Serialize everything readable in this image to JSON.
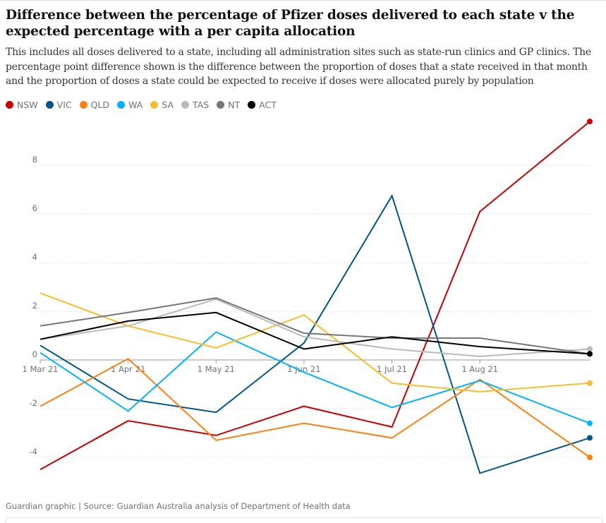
{
  "header": {
    "title": "Difference between the percentage of Pfizer doses delivered to each state v the expected percentage with a per capita allocation",
    "subtitle": "This includes all doses delivered to a state, including all administration sites such as state-run clinics and GP clinics. The percentage point difference shown is the difference between the proportion of doses that a state received in that month and the proportion of doses a state could be expected to receive if doses were allocated purely by population"
  },
  "footer": {
    "source": "Guardian graphic | Source: Guardian Australia analysis of Department of Health data"
  },
  "chart_data": {
    "type": "line",
    "title": "Difference between the percentage of Pfizer doses delivered to each state v the expected percentage with a per capita allocation",
    "xlabel": "",
    "ylabel": "",
    "x_range": [
      0,
      6.25
    ],
    "ylim": [
      -4.9,
      9.6
    ],
    "x_ticks": [
      {
        "x": 0,
        "label": "1 Mar 21"
      },
      {
        "x": 1,
        "label": "1 Apr 21"
      },
      {
        "x": 2,
        "label": "1 May 21"
      },
      {
        "x": 3,
        "label": "1 Jun 21"
      },
      {
        "x": 4,
        "label": "1 Jul 21"
      },
      {
        "x": 5,
        "label": "1 Aug 21"
      }
    ],
    "y_ticks": [
      -4,
      -2,
      0,
      2,
      4,
      6,
      8
    ],
    "x": [
      0,
      1,
      2,
      3,
      4,
      5,
      6.25
    ],
    "series": [
      {
        "name": "NSW",
        "color": "#c70000",
        "values": [
          -4.5,
          -2.5,
          -3.1,
          -1.9,
          -2.75,
          6.1,
          9.8
        ]
      },
      {
        "name": "VIC",
        "color": "#005689",
        "values": [
          0.6,
          -1.6,
          -2.15,
          0.7,
          6.75,
          -4.65,
          -3.2
        ]
      },
      {
        "name": "QLD",
        "color": "#ff7f0f",
        "values": [
          -1.9,
          0.05,
          -3.3,
          -2.6,
          -3.2,
          -0.8,
          -4.0
        ]
      },
      {
        "name": "WA",
        "color": "#00b2ff",
        "values": [
          0.3,
          -2.1,
          1.15,
          -0.5,
          -1.95,
          -0.85,
          -2.6
        ]
      },
      {
        "name": "SA",
        "color": "#f5be2c",
        "values": [
          2.75,
          1.4,
          0.5,
          1.85,
          -0.95,
          -1.3,
          -0.95
        ]
      },
      {
        "name": "TAS",
        "color": "#bababa",
        "values": [
          0.85,
          1.4,
          2.5,
          0.95,
          0.45,
          0.15,
          0.45
        ]
      },
      {
        "name": "NT",
        "color": "#767676",
        "values": [
          1.4,
          1.95,
          2.55,
          1.1,
          0.9,
          0.9,
          0.25
        ]
      },
      {
        "name": "ACT",
        "color": "#000000",
        "values": [
          0.85,
          1.6,
          1.95,
          0.45,
          0.95,
          0.55,
          0.25
        ]
      }
    ]
  }
}
